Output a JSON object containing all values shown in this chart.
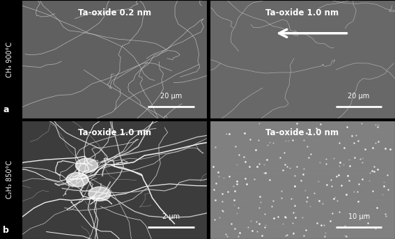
{
  "figure_width": 5.67,
  "figure_height": 3.43,
  "dpi": 100,
  "background_color": "#000000",
  "panel_label_a": "a",
  "panel_label_b": "b",
  "panel_label_color": "#ffffff",
  "panel_label_bg": "#000000",
  "row_labels": [
    "CH₄ 900°C",
    "C₂H₂ 850°C"
  ],
  "row_label_color": "#ffffff",
  "top_labels": [
    "Ta-oxide 0.2 nm",
    "Ta-oxide 1.0 nm",
    "Ta-oxide 1.0 nm",
    "Ta-oxide 1.0 nm"
  ],
  "scale_bar_labels": [
    "20 μm",
    "20 μm",
    "2 μm",
    "10 μm"
  ],
  "arrow_panel": 1,
  "arrow_text": "",
  "sem_bg_colors": [
    "#6a6a6a",
    "#747474",
    "#4a4a4a",
    "#8a8a8a"
  ],
  "grid_color": "#555555",
  "separator_color": "#000000"
}
